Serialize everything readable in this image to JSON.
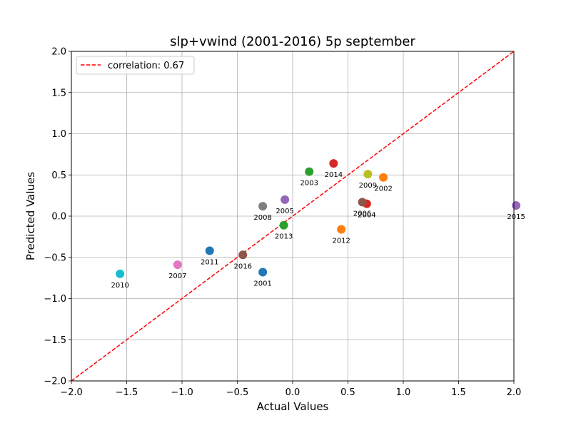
{
  "chart_data": {
    "type": "scatter",
    "title": "slp+vwind (2001-2016) 5p september",
    "xlabel": "Actual Values",
    "ylabel": "Predicted Values",
    "xlim": [
      -2.0,
      2.0
    ],
    "ylim": [
      -2.0,
      2.0
    ],
    "x_ticks": [
      "−2.0",
      "−1.5",
      "−1.0",
      "−0.5",
      "0.0",
      "0.5",
      "1.0",
      "1.5",
      "2.0"
    ],
    "y_ticks": [
      "−2.0",
      "−1.5",
      "−1.0",
      "−0.5",
      "0.0",
      "0.5",
      "1.0",
      "1.5",
      "2.0"
    ],
    "x_tick_values": [
      -2.0,
      -1.5,
      -1.0,
      -0.5,
      0.0,
      0.5,
      1.0,
      1.5,
      2.0
    ],
    "y_tick_values": [
      -2.0,
      -1.5,
      -1.0,
      -0.5,
      0.0,
      0.5,
      1.0,
      1.5,
      2.0
    ],
    "grid": true,
    "legend": {
      "placement": "top-left",
      "label": "correlation: 0.67",
      "color": "#ff0000",
      "style": "dashed"
    },
    "reference_line": {
      "from": [
        -2.0,
        -2.0
      ],
      "to": [
        2.0,
        2.0
      ]
    },
    "points": [
      {
        "label": "2001",
        "x": -0.27,
        "y": -0.68,
        "color": "#1f77b4"
      },
      {
        "label": "2002",
        "x": 0.82,
        "y": 0.47,
        "color": "#ff7f0e"
      },
      {
        "label": "2003",
        "x": 0.15,
        "y": 0.54,
        "color": "#2ca02c"
      },
      {
        "label": "2004",
        "x": 0.67,
        "y": 0.15,
        "color": "#d62728"
      },
      {
        "label": "2005",
        "x": -0.07,
        "y": 0.2,
        "color": "#9467bd"
      },
      {
        "label": "2006",
        "x": 0.63,
        "y": 0.17,
        "color": "#8c564b"
      },
      {
        "label": "2007",
        "x": -1.04,
        "y": -0.59,
        "color": "#e377c2"
      },
      {
        "label": "2008",
        "x": -0.27,
        "y": 0.12,
        "color": "#7f7f7f"
      },
      {
        "label": "2009",
        "x": 0.68,
        "y": 0.51,
        "color": "#bcbd22"
      },
      {
        "label": "2010",
        "x": -1.56,
        "y": -0.7,
        "color": "#17becf"
      },
      {
        "label": "2011",
        "x": -0.75,
        "y": -0.42,
        "color": "#1f77b4"
      },
      {
        "label": "2012",
        "x": 0.44,
        "y": -0.16,
        "color": "#ff7f0e"
      },
      {
        "label": "2013",
        "x": -0.08,
        "y": -0.11,
        "color": "#2ca02c"
      },
      {
        "label": "2014",
        "x": 0.37,
        "y": 0.64,
        "color": "#d62728"
      },
      {
        "label": "2015",
        "x": 2.02,
        "y": 0.13,
        "color": "#9467bd"
      },
      {
        "label": "2016",
        "x": -0.45,
        "y": -0.47,
        "color": "#8c564b"
      }
    ]
  }
}
